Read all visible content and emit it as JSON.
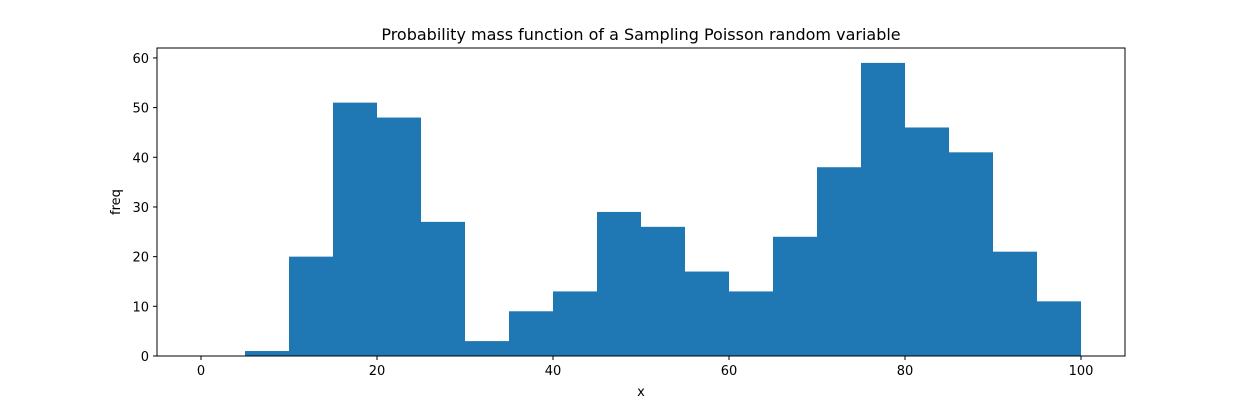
{
  "chart_data": {
    "type": "bar",
    "title": "Probability mass function of a Sampling Poisson random variable",
    "xlabel": "x",
    "ylabel": "freq",
    "xlim": [
      -5,
      105
    ],
    "ylim": [
      0,
      62
    ],
    "grid": false,
    "bar_color": "#1f77b4",
    "x_ticks": [
      0,
      20,
      40,
      60,
      80,
      100
    ],
    "y_ticks": [
      0,
      10,
      20,
      30,
      40,
      50,
      60
    ],
    "bin_edges": [
      0,
      5,
      10,
      15,
      20,
      25,
      30,
      35,
      40,
      45,
      50,
      55,
      60,
      65,
      70,
      75,
      80,
      85,
      90,
      95,
      100
    ],
    "values": [
      0,
      1,
      20,
      51,
      48,
      27,
      3,
      9,
      13,
      29,
      26,
      17,
      13,
      24,
      38,
      59,
      46,
      41,
      21,
      11
    ]
  }
}
